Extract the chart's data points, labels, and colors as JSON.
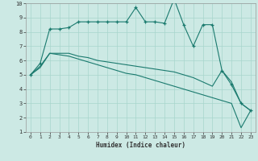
{
  "xlabel": "Humidex (Indice chaleur)",
  "xlim": [
    -0.5,
    23.5
  ],
  "ylim": [
    1,
    10
  ],
  "xticks": [
    0,
    1,
    2,
    3,
    4,
    5,
    6,
    7,
    8,
    9,
    10,
    11,
    12,
    13,
    14,
    15,
    16,
    17,
    18,
    19,
    20,
    21,
    22,
    23
  ],
  "yticks": [
    1,
    2,
    3,
    4,
    5,
    6,
    7,
    8,
    9,
    10
  ],
  "bg_color": "#cce9e4",
  "grid_color": "#a8d5cc",
  "line_color": "#1a7a6e",
  "series": [
    {
      "x": [
        0,
        1,
        2,
        3,
        4,
        5,
        6,
        7,
        8,
        9,
        10,
        11,
        12,
        13,
        14,
        15,
        16,
        17,
        18,
        19,
        20,
        21,
        22,
        23
      ],
      "y": [
        5.0,
        5.6,
        6.5,
        6.5,
        6.5,
        6.3,
        6.2,
        6.0,
        5.9,
        5.8,
        5.7,
        5.6,
        5.5,
        5.4,
        5.3,
        5.2,
        5.0,
        4.8,
        4.5,
        4.2,
        5.3,
        4.5,
        3.0,
        2.5
      ],
      "marker": false
    },
    {
      "x": [
        0,
        1,
        2,
        3,
        4,
        5,
        6,
        7,
        8,
        9,
        10,
        11,
        12,
        13,
        14,
        15,
        16,
        17,
        18,
        19,
        20,
        21,
        22,
        23
      ],
      "y": [
        5.0,
        5.5,
        6.5,
        6.4,
        6.3,
        6.1,
        5.9,
        5.7,
        5.5,
        5.3,
        5.1,
        5.0,
        4.8,
        4.6,
        4.4,
        4.2,
        4.0,
        3.8,
        3.6,
        3.4,
        3.2,
        3.0,
        1.3,
        2.5
      ],
      "marker": false
    },
    {
      "x": [
        0,
        1,
        2,
        3,
        4,
        5,
        6,
        7,
        8,
        9,
        10,
        11,
        12,
        13,
        14,
        15,
        16,
        17,
        18,
        19,
        20,
        21,
        22,
        23
      ],
      "y": [
        5.0,
        5.8,
        8.2,
        8.2,
        8.3,
        8.7,
        8.7,
        8.7,
        8.7,
        8.7,
        8.7,
        9.7,
        8.7,
        8.7,
        8.6,
        10.3,
        8.5,
        7.0,
        8.5,
        8.5,
        5.3,
        4.3,
        3.0,
        2.5
      ],
      "marker": true
    }
  ]
}
